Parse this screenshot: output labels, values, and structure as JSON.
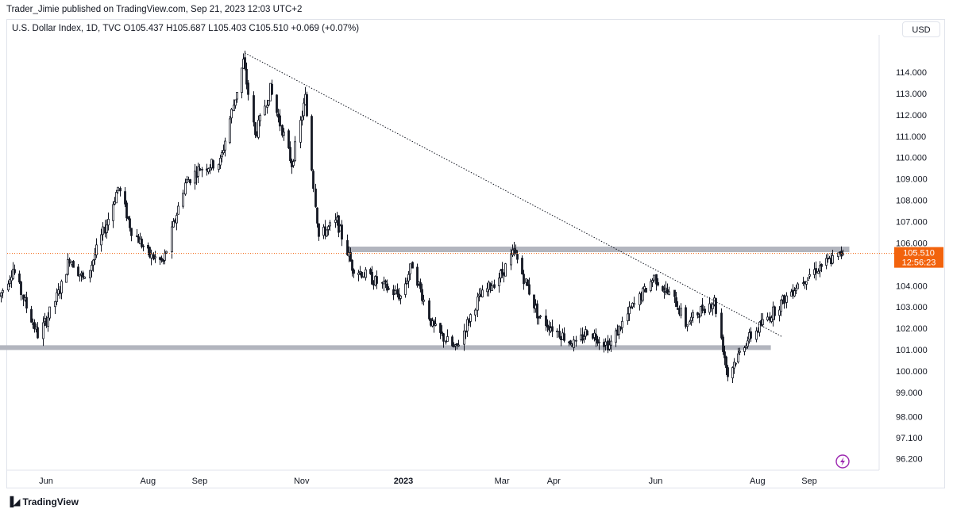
{
  "header": {
    "publisher_line": "Trader_Jimie published on TradingView.com, Sep 21, 2023 12:03 UTC+2"
  },
  "legend": {
    "text": "U.S. Dollar Index, 1D, TVC  O105.437  H105.687  L105.403  C105.510  +0.069 (+0.07%)"
  },
  "currency_button": "USD",
  "footer": {
    "logo_text": "TradingView",
    "logo_mark": "𝟷𝟟"
  },
  "price_label": {
    "price": "105.510",
    "countdown": "12:56:23"
  },
  "colors": {
    "accent": "#f7525f",
    "price_tag": "#f2630d",
    "support_band": "#b2b5be",
    "candle": "#131722",
    "flash_icon": "#9c27b0"
  },
  "chart_data": {
    "type": "candlestick",
    "symbol": "U.S. Dollar Index",
    "interval": "1D",
    "source": "TVC",
    "ohlc_last": {
      "open": 105.437,
      "high": 105.687,
      "low": 105.403,
      "close": 105.51,
      "change": 0.069,
      "change_pct": 0.07
    },
    "y_ticks": [
      114.0,
      113.0,
      112.0,
      111.0,
      110.0,
      109.0,
      108.0,
      107.0,
      106.0,
      105.0,
      104.0,
      103.0,
      102.0,
      101.0,
      100.0,
      99.0,
      98.0,
      97.1,
      96.2
    ],
    "y_tick_labels": [
      "114.000",
      "113.000",
      "112.000",
      "111.000",
      "110.000",
      "109.000",
      "108.000",
      "107.000",
      "106.000",
      "105.000",
      "104.000",
      "103.000",
      "102.000",
      "101.000",
      "100.000",
      "99.000",
      "98.000",
      "97.100",
      "96.200"
    ],
    "x_ticks": [
      {
        "label": "Jun",
        "date": "2022-06-01"
      },
      {
        "label": "Aug",
        "date": "2022-08-01"
      },
      {
        "label": "Sep",
        "date": "2022-09-01"
      },
      {
        "label": "Nov",
        "date": "2022-11-01"
      },
      {
        "label": "2023",
        "date": "2023-01-01",
        "bold": true
      },
      {
        "label": "Mar",
        "date": "2023-03-01"
      },
      {
        "label": "Apr",
        "date": "2023-04-01"
      },
      {
        "label": "Jun",
        "date": "2023-06-01"
      },
      {
        "label": "Aug",
        "date": "2023-08-01"
      },
      {
        "label": "Sep",
        "date": "2023-09-01"
      }
    ],
    "close_path": [
      {
        "date": "2022-05-04",
        "value": 103.5
      },
      {
        "date": "2022-05-12",
        "value": 104.8
      },
      {
        "date": "2022-05-20",
        "value": 103.0
      },
      {
        "date": "2022-05-27",
        "value": 101.7
      },
      {
        "date": "2022-06-01",
        "value": 102.4
      },
      {
        "date": "2022-06-10",
        "value": 104.0
      },
      {
        "date": "2022-06-15",
        "value": 105.3
      },
      {
        "date": "2022-06-24",
        "value": 104.2
      },
      {
        "date": "2022-07-07",
        "value": 106.9
      },
      {
        "date": "2022-07-14",
        "value": 108.6
      },
      {
        "date": "2022-07-22",
        "value": 106.6
      },
      {
        "date": "2022-08-02",
        "value": 105.4
      },
      {
        "date": "2022-08-10",
        "value": 105.1
      },
      {
        "date": "2022-08-23",
        "value": 108.8
      },
      {
        "date": "2022-09-01",
        "value": 109.5
      },
      {
        "date": "2022-09-13",
        "value": 109.8
      },
      {
        "date": "2022-09-27",
        "value": 114.5
      },
      {
        "date": "2022-10-04",
        "value": 111.0
      },
      {
        "date": "2022-10-13",
        "value": 113.2
      },
      {
        "date": "2022-10-26",
        "value": 109.7
      },
      {
        "date": "2022-11-03",
        "value": 112.8
      },
      {
        "date": "2022-11-11",
        "value": 106.3
      },
      {
        "date": "2022-11-22",
        "value": 107.0
      },
      {
        "date": "2022-12-01",
        "value": 104.9
      },
      {
        "date": "2022-12-15",
        "value": 104.2
      },
      {
        "date": "2022-12-30",
        "value": 103.5
      },
      {
        "date": "2023-01-06",
        "value": 105.0
      },
      {
        "date": "2023-01-18",
        "value": 102.1
      },
      {
        "date": "2023-02-01",
        "value": 101.0
      },
      {
        "date": "2023-02-14",
        "value": 103.3
      },
      {
        "date": "2023-03-01",
        "value": 104.6
      },
      {
        "date": "2023-03-08",
        "value": 105.6
      },
      {
        "date": "2023-03-23",
        "value": 102.5
      },
      {
        "date": "2023-04-14",
        "value": 101.2
      },
      {
        "date": "2023-04-21",
        "value": 101.9
      },
      {
        "date": "2023-05-04",
        "value": 101.2
      },
      {
        "date": "2023-05-17",
        "value": 102.9
      },
      {
        "date": "2023-05-31",
        "value": 104.4
      },
      {
        "date": "2023-06-13",
        "value": 103.2
      },
      {
        "date": "2023-06-19",
        "value": 102.2
      },
      {
        "date": "2023-06-30",
        "value": 103.0
      },
      {
        "date": "2023-07-06",
        "value": 103.3
      },
      {
        "date": "2023-07-14",
        "value": 99.8
      },
      {
        "date": "2023-07-24",
        "value": 101.3
      },
      {
        "date": "2023-08-01",
        "value": 102.0
      },
      {
        "date": "2023-08-15",
        "value": 103.2
      },
      {
        "date": "2023-08-25",
        "value": 104.1
      },
      {
        "date": "2023-09-07",
        "value": 104.9
      },
      {
        "date": "2023-09-21",
        "value": 105.51
      }
    ],
    "drawings": {
      "trendline": {
        "start": {
          "date": "2022-09-28",
          "value": 114.9
        },
        "end": {
          "date": "2023-08-16",
          "value": 101.6
        },
        "style": "dotted"
      },
      "resistance_band": {
        "start_date": "2022-11-28",
        "end_date": "2023-09-25",
        "value": 105.7
      },
      "support_band": {
        "start_date": "2022-04-28",
        "end_date": "2023-08-09",
        "value": 101.1
      },
      "last_price_line": 105.51
    },
    "grid": false,
    "legend_position": "top-left"
  }
}
